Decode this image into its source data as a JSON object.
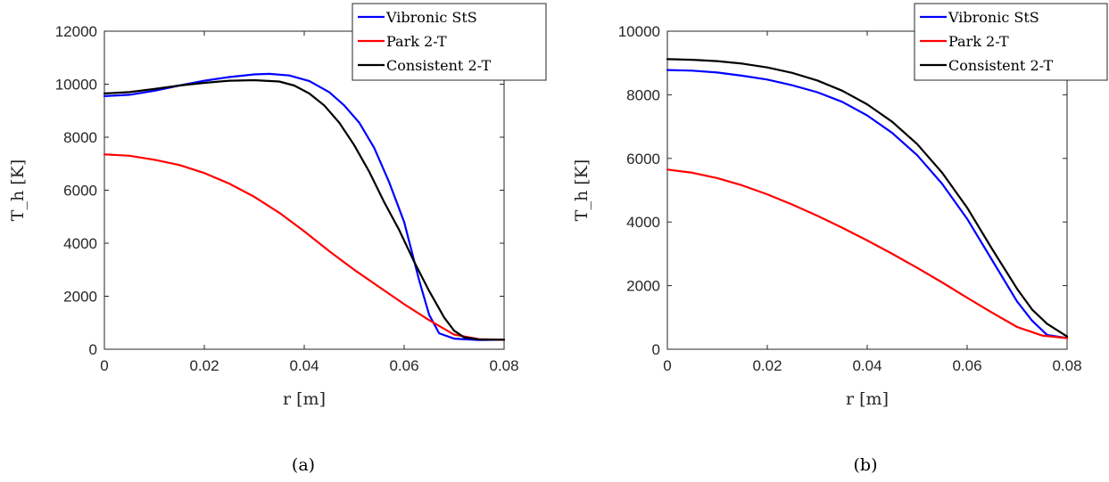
{
  "chart_data": [
    {
      "type": "line",
      "caption": "(a)",
      "xlabel": "r [m]",
      "ylabel": "T_h [K]",
      "xlim": [
        0,
        0.08
      ],
      "ylim": [
        0,
        12000
      ],
      "xticks": [
        0,
        0.02,
        0.04,
        0.06,
        0.08
      ],
      "xtick_labels": [
        "0",
        "0.02",
        "0.04",
        "0.06",
        "0.08"
      ],
      "yticks": [
        0,
        2000,
        4000,
        6000,
        8000,
        10000,
        12000
      ],
      "ytick_labels": [
        "0",
        "2000",
        "4000",
        "6000",
        "8000",
        "10000",
        "12000"
      ],
      "legend_position": "top-right",
      "series": [
        {
          "name": "Vibronic StS",
          "color": "#0000ff",
          "x": [
            0,
            0.005,
            0.01,
            0.015,
            0.02,
            0.025,
            0.03,
            0.033,
            0.037,
            0.041,
            0.045,
            0.048,
            0.051,
            0.054,
            0.057,
            0.06,
            0.063,
            0.065,
            0.067,
            0.07,
            0.075,
            0.08
          ],
          "y": [
            9550,
            9600,
            9750,
            9950,
            10130,
            10270,
            10370,
            10390,
            10330,
            10120,
            9700,
            9200,
            8550,
            7600,
            6300,
            4800,
            2600,
            1300,
            600,
            400,
            350,
            360
          ]
        },
        {
          "name": "Park 2-T",
          "color": "#ff0000",
          "x": [
            0,
            0.005,
            0.01,
            0.015,
            0.02,
            0.025,
            0.03,
            0.035,
            0.04,
            0.045,
            0.05,
            0.055,
            0.06,
            0.065,
            0.07,
            0.075,
            0.08
          ],
          "y": [
            7350,
            7300,
            7150,
            6950,
            6650,
            6250,
            5750,
            5150,
            4450,
            3700,
            3000,
            2350,
            1700,
            1100,
            550,
            380,
            360
          ]
        },
        {
          "name": "Consistent 2-T",
          "color": "#000000",
          "x": [
            0,
            0.005,
            0.01,
            0.015,
            0.02,
            0.025,
            0.03,
            0.035,
            0.038,
            0.041,
            0.044,
            0.047,
            0.05,
            0.053,
            0.056,
            0.059,
            0.062,
            0.065,
            0.068,
            0.07,
            0.072,
            0.075,
            0.08
          ],
          "y": [
            9650,
            9700,
            9820,
            9950,
            10050,
            10130,
            10150,
            10100,
            9950,
            9650,
            9200,
            8550,
            7700,
            6700,
            5550,
            4500,
            3300,
            2200,
            1200,
            700,
            450,
            370,
            360
          ]
        }
      ]
    },
    {
      "type": "line",
      "caption": "(b)",
      "xlabel": "r [m]",
      "ylabel": "T_h [K]",
      "xlim": [
        0,
        0.08
      ],
      "ylim": [
        0,
        10000
      ],
      "xticks": [
        0,
        0.02,
        0.04,
        0.06,
        0.08
      ],
      "xtick_labels": [
        "0",
        "0.02",
        "0.04",
        "0.06",
        "0.08"
      ],
      "yticks": [
        0,
        2000,
        4000,
        6000,
        8000,
        10000
      ],
      "ytick_labels": [
        "0",
        "2000",
        "4000",
        "6000",
        "8000",
        "10000"
      ],
      "legend_position": "top-right",
      "series": [
        {
          "name": "Vibronic StS",
          "color": "#0000ff",
          "x": [
            0,
            0.005,
            0.01,
            0.015,
            0.02,
            0.025,
            0.03,
            0.035,
            0.04,
            0.045,
            0.05,
            0.055,
            0.06,
            0.065,
            0.07,
            0.073,
            0.076,
            0.08
          ],
          "y": [
            8780,
            8760,
            8700,
            8600,
            8480,
            8300,
            8080,
            7780,
            7350,
            6800,
            6100,
            5200,
            4100,
            2800,
            1500,
            900,
            450,
            350
          ]
        },
        {
          "name": "Park 2-T",
          "color": "#ff0000",
          "x": [
            0,
            0.005,
            0.01,
            0.015,
            0.02,
            0.025,
            0.03,
            0.035,
            0.04,
            0.045,
            0.05,
            0.055,
            0.06,
            0.065,
            0.07,
            0.075,
            0.08
          ],
          "y": [
            5650,
            5550,
            5380,
            5150,
            4870,
            4550,
            4200,
            3820,
            3420,
            3000,
            2560,
            2100,
            1620,
            1150,
            700,
            430,
            350
          ]
        },
        {
          "name": "Consistent 2-T",
          "color": "#000000",
          "x": [
            0,
            0.005,
            0.01,
            0.015,
            0.02,
            0.025,
            0.03,
            0.035,
            0.04,
            0.045,
            0.05,
            0.055,
            0.06,
            0.065,
            0.07,
            0.073,
            0.076,
            0.08
          ],
          "y": [
            9120,
            9100,
            9060,
            8980,
            8860,
            8690,
            8450,
            8130,
            7700,
            7150,
            6450,
            5550,
            4450,
            3150,
            1900,
            1250,
            800,
            400
          ]
        }
      ]
    }
  ]
}
